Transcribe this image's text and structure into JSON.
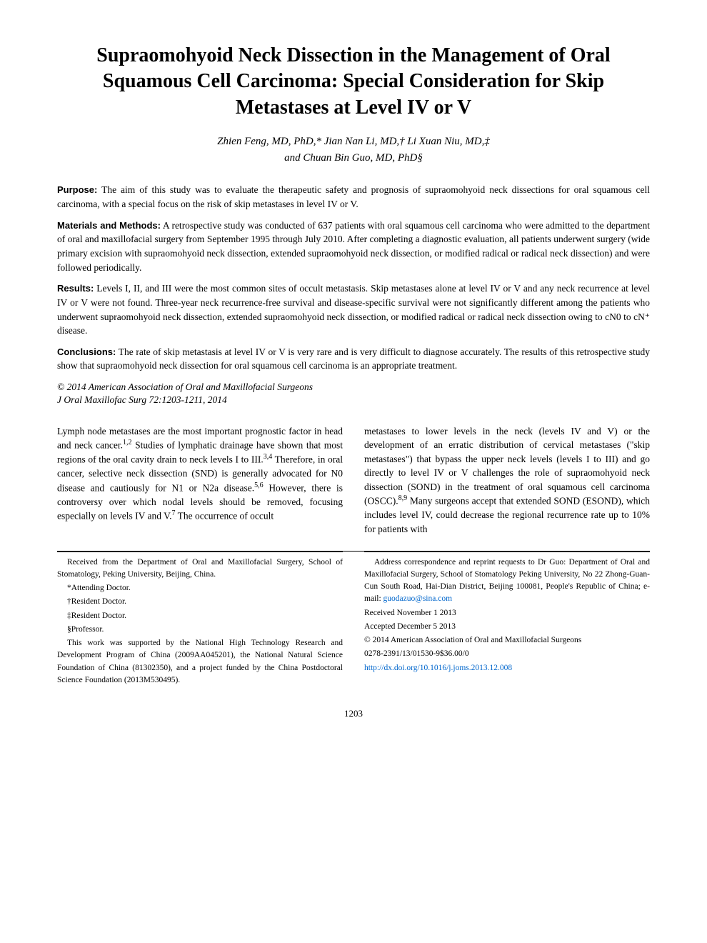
{
  "title": "Supraomohyoid Neck Dissection in the Management of Oral Squamous Cell Carcinoma: Special Consideration for Skip Metastases at Level IV or V",
  "authors_line1": "Zhien Feng, MD, PhD,* Jian Nan Li, MD,† Li Xuan Niu, MD,‡",
  "authors_line2": "and Chuan Bin Guo, MD, PhD§",
  "abstract": {
    "purpose_label": "Purpose:",
    "purpose": "The aim of this study was to evaluate the therapeutic safety and prognosis of supraomohyoid neck dissections for oral squamous cell carcinoma, with a special focus on the risk of skip metastases in level IV or V.",
    "methods_label": "Materials and Methods:",
    "methods": "A retrospective study was conducted of 637 patients with oral squamous cell carcinoma who were admitted to the department of oral and maxillofacial surgery from September 1995 through July 2010. After completing a diagnostic evaluation, all patients underwent surgery (wide primary excision with supraomohyoid neck dissection, extended supraomohyoid neck dissection, or modified radical or radical neck dissection) and were followed periodically.",
    "results_label": "Results:",
    "results": "Levels I, II, and III were the most common sites of occult metastasis. Skip metastases alone at level IV or V and any neck recurrence at level IV or V were not found. Three-year neck recurrence-free survival and disease-specific survival were not significantly different among the patients who underwent supraomohyoid neck dissection, extended supraomohyoid neck dissection, or modified radical or radical neck dissection owing to cN0 to cN⁺ disease.",
    "conclusions_label": "Conclusions:",
    "conclusions": "The rate of skip metastasis at level IV or V is very rare and is very difficult to diagnose accurately. The results of this retrospective study show that supraomohyoid neck dissection for oral squamous cell carcinoma is an appropriate treatment."
  },
  "copyright": "© 2014 American Association of Oral and Maxillofacial Surgeons",
  "citation": "J Oral Maxillofac Surg 72:1203-1211, 2014",
  "body": {
    "col1_a": "Lymph node metastases are the most important prognostic factor in head and neck cancer.",
    "col1_b": " Studies of lymphatic drainage have shown that most regions of the oral cavity drain to neck levels I to III.",
    "col1_c": " Therefore, in oral cancer, selective neck dissection (SND) is generally advocated for N0 disease and cautiously for N1 or N2a disease.",
    "col1_d": " However, there is controversy over which nodal levels should be removed, focusing especially on levels IV and V.",
    "col1_e": " The occurrence of occult",
    "col2_a": "metastases to lower levels in the neck (levels IV and V) or the development of an erratic distribution of cervical metastases (\"skip metastases\") that bypass the upper neck levels (levels I to III) and go directly to level IV or V challenges the role of supraomohyoid neck dissection (SOND) in the treatment of oral squamous cell carcinoma (OSCC).",
    "col2_b": " Many surgeons accept that extended SOND (ESOND), which includes level IV, could decrease the regional recurrence rate up to 10% for patients with",
    "sup_12": "1,2",
    "sup_34": "3,4",
    "sup_56": "5,6",
    "sup_7": "7",
    "sup_89": "8,9"
  },
  "footer": {
    "left": {
      "received_from": "Received from the Department of Oral and Maxillofacial Surgery, School of Stomatology, Peking University, Beijing, China.",
      "aff1": "*Attending Doctor.",
      "aff2": "†Resident Doctor.",
      "aff3": "‡Resident Doctor.",
      "aff4": "§Professor.",
      "funding": "This work was supported by the National High Technology Research and Development Program of China (2009AA045201), the National Natural Science Foundation of China (81302350), and a project funded by the China Postdoctoral Science Foundation (2013M530495)."
    },
    "right": {
      "correspondence_a": "Address correspondence and reprint requests to Dr Guo: Department of Oral and Maxillofacial Surgery, School of Stomatology Peking University, No 22 Zhong-Guan-Cun South Road, Hai-Dian District, Beijing 100081, People's Republic of China; e-mail: ",
      "email": "guodazuo@sina.com",
      "received": "Received November 1 2013",
      "accepted": "Accepted December 5 2013",
      "copyright2": "© 2014 American Association of Oral and Maxillofacial Surgeons",
      "issn": "0278-2391/13/01530-9$36.00/0",
      "doi": "http://dx.doi.org/10.1016/j.joms.2013.12.008"
    }
  },
  "page_number": "1203",
  "colors": {
    "link": "#0066cc",
    "text": "#000000",
    "bg": "#ffffff"
  }
}
